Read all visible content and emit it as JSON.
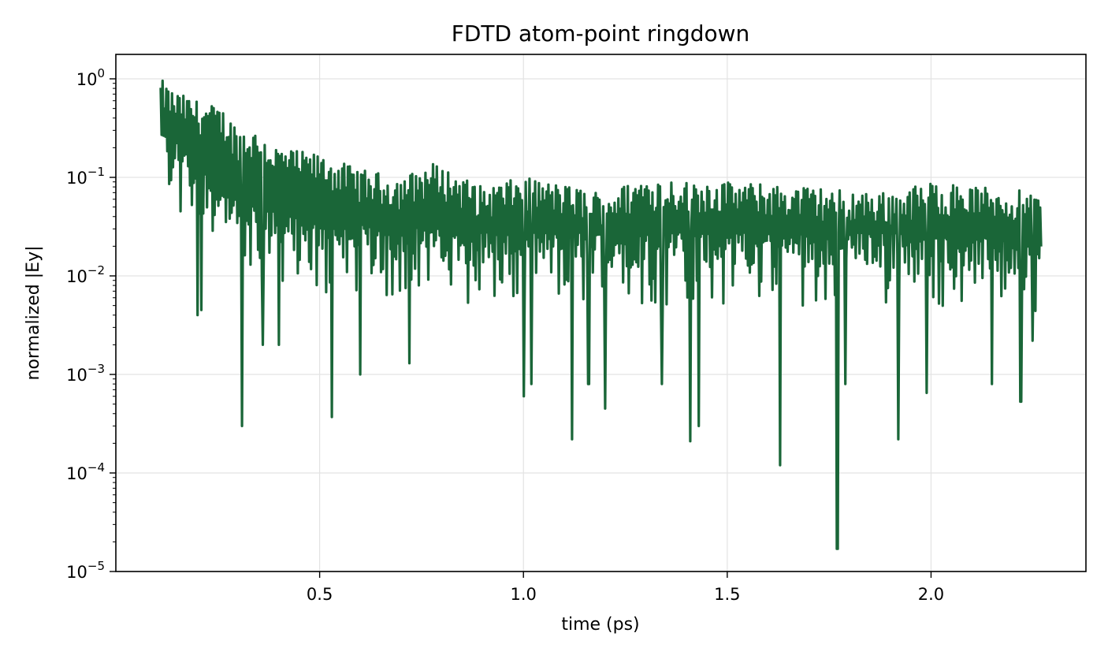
{
  "chart_data": {
    "type": "line",
    "title": "FDTD atom-point ringdown",
    "xlabel": "time (ps)",
    "ylabel": "normalized |Ey|",
    "yscale": "log",
    "grid": true,
    "xlim": [
      0.0,
      2.38
    ],
    "ylim": [
      1e-05,
      1.6
    ],
    "x_ticks": [
      {
        "value": 0.5,
        "label": "0.5"
      },
      {
        "value": 1.0,
        "label": "1.0"
      },
      {
        "value": 1.5,
        "label": "1.5"
      },
      {
        "value": 2.0,
        "label": "2.0"
      }
    ],
    "y_ticks": [
      {
        "value": 1,
        "base": "10",
        "exp": "0"
      },
      {
        "value": 0.1,
        "base": "10",
        "exp": "−1"
      },
      {
        "value": 0.01,
        "base": "10",
        "exp": "−2"
      },
      {
        "value": 0.001,
        "base": "10",
        "exp": "−3"
      },
      {
        "value": 0.0001,
        "base": "10",
        "exp": "−4"
      },
      {
        "value": 1e-05,
        "base": "10",
        "exp": "−5"
      }
    ],
    "series": [
      {
        "color": "#1a6638",
        "x_range": [
          0.11,
          2.27
        ],
        "envelope_peaks": [
          [
            0.11,
            1.0
          ],
          [
            0.14,
            0.75
          ],
          [
            0.2,
            0.6
          ],
          [
            0.26,
            0.5
          ],
          [
            0.3,
            0.32
          ],
          [
            0.34,
            0.3
          ],
          [
            0.4,
            0.2
          ],
          [
            0.5,
            0.17
          ],
          [
            0.6,
            0.12
          ],
          [
            0.7,
            0.1
          ],
          [
            0.78,
            0.14
          ],
          [
            0.9,
            0.08
          ],
          [
            1.0,
            0.1
          ],
          [
            1.2,
            0.07
          ],
          [
            1.3,
            0.1
          ],
          [
            1.5,
            0.09
          ],
          [
            1.7,
            0.08
          ],
          [
            1.9,
            0.07
          ],
          [
            2.0,
            0.09
          ],
          [
            2.27,
            0.07
          ]
        ],
        "baseline_level": [
          [
            0.11,
            0.25
          ],
          [
            0.2,
            0.1
          ],
          [
            0.3,
            0.04
          ],
          [
            0.5,
            0.025
          ],
          [
            1.0,
            0.02
          ],
          [
            1.5,
            0.02
          ],
          [
            2.0,
            0.02
          ],
          [
            2.27,
            0.015
          ]
        ],
        "deep_minima": [
          {
            "x": 0.2,
            "y": 0.004
          },
          {
            "x": 0.21,
            "y": 0.0045
          },
          {
            "x": 0.31,
            "y": 0.0003
          },
          {
            "x": 0.36,
            "y": 0.002
          },
          {
            "x": 0.4,
            "y": 0.002
          },
          {
            "x": 0.53,
            "y": 0.00037
          },
          {
            "x": 0.6,
            "y": 0.001
          },
          {
            "x": 0.72,
            "y": 0.0013
          },
          {
            "x": 1.0,
            "y": 0.0006
          },
          {
            "x": 1.02,
            "y": 0.0008
          },
          {
            "x": 1.12,
            "y": 0.00022
          },
          {
            "x": 1.16,
            "y": 0.0008
          },
          {
            "x": 1.2,
            "y": 0.00045
          },
          {
            "x": 1.34,
            "y": 0.0008
          },
          {
            "x": 1.41,
            "y": 0.00021
          },
          {
            "x": 1.43,
            "y": 0.0003
          },
          {
            "x": 1.63,
            "y": 0.00012
          },
          {
            "x": 1.77,
            "y": 1.7e-05
          },
          {
            "x": 1.79,
            "y": 0.0008
          },
          {
            "x": 1.92,
            "y": 0.00022
          },
          {
            "x": 1.99,
            "y": 0.00065
          },
          {
            "x": 2.15,
            "y": 0.0008
          },
          {
            "x": 2.22,
            "y": 0.00053
          },
          {
            "x": 2.25,
            "y": 0.0022
          }
        ]
      }
    ]
  }
}
